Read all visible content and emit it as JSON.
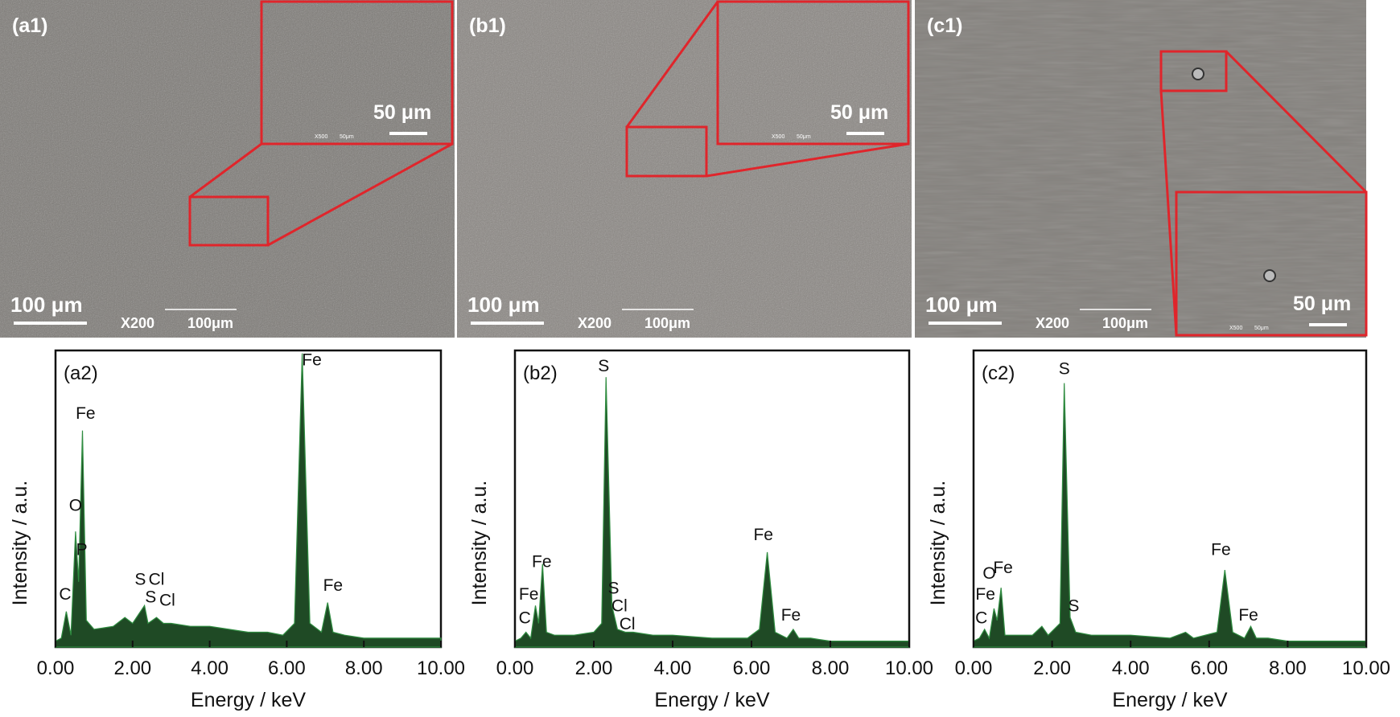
{
  "images": [
    {
      "label": "(a1)",
      "scale_bar": "100 μm",
      "mag": "X200",
      "mag_bar": "100μm",
      "inset_scale_bar": "50 μm",
      "inset_mag": "X500",
      "inset_mag_bar": "50μm"
    },
    {
      "label": "(b1)",
      "scale_bar": "100 μm",
      "mag": "X200",
      "mag_bar": "100μm",
      "inset_scale_bar": "50 μm",
      "inset_mag": "X500",
      "inset_mag_bar": "50μm"
    },
    {
      "label": "(c1)",
      "scale_bar": "100 μm",
      "mag": "X200",
      "mag_bar": "100μm",
      "inset_scale_bar": "50 μm",
      "inset_mag": "X500",
      "inset_mag_bar": "50μm"
    }
  ],
  "chart_data": [
    {
      "type": "area",
      "panel_label": "(a2)",
      "x_label": "Energy / keV",
      "y_label": "Intensity / a.u.",
      "color": "#1f4a25",
      "edge_color": "#2f8c40",
      "xlim": [
        0,
        10
      ],
      "ylim": [
        0,
        100
      ],
      "xticks": [
        {
          "value": 0,
          "label": "0.00"
        },
        {
          "value": 2,
          "label": "2.00"
        },
        {
          "value": 4,
          "label": "4.00"
        },
        {
          "value": 6,
          "label": "6.00"
        },
        {
          "value": 8,
          "label": "8.00"
        },
        {
          "value": 10,
          "label": "10.00"
        }
      ],
      "x": [
        0.0,
        0.15,
        0.28,
        0.4,
        0.52,
        0.6,
        0.7,
        0.8,
        1.0,
        1.5,
        1.8,
        2.0,
        2.31,
        2.4,
        2.62,
        2.8,
        3.0,
        3.5,
        4.0,
        4.5,
        5.0,
        5.5,
        5.9,
        6.2,
        6.4,
        6.6,
        6.9,
        7.06,
        7.2,
        7.5,
        8.0,
        9.0,
        10.0
      ],
      "values": [
        2,
        3,
        12,
        4,
        39,
        22,
        73,
        9,
        6,
        7,
        10,
        8,
        14,
        8,
        10,
        8,
        8,
        7,
        7,
        6,
        5,
        5,
        4,
        8,
        99,
        8,
        5,
        15,
        5,
        4,
        3,
        3,
        3
      ],
      "annotations": [
        {
          "text": "C",
          "x": 0.25,
          "y": 16
        },
        {
          "text": "O",
          "x": 0.52,
          "y": 46
        },
        {
          "text": "P",
          "x": 0.68,
          "y": 31
        },
        {
          "text": "Fe",
          "x": 0.78,
          "y": 77
        },
        {
          "text": "S",
          "x": 2.2,
          "y": 21
        },
        {
          "text": "Cl",
          "x": 2.62,
          "y": 21
        },
        {
          "text": "S",
          "x": 2.47,
          "y": 15
        },
        {
          "text": "Cl",
          "x": 2.9,
          "y": 14
        },
        {
          "text": "Fe",
          "x": 6.65,
          "y": 95
        },
        {
          "text": "Fe",
          "x": 7.2,
          "y": 19
        }
      ]
    },
    {
      "type": "area",
      "panel_label": "(b2)",
      "x_label": "Energy / keV",
      "y_label": "Intensity / a.u.",
      "color": "#1f4a25",
      "edge_color": "#2f8c40",
      "xlim": [
        0,
        10
      ],
      "ylim": [
        0,
        100
      ],
      "xticks": [
        {
          "value": 0,
          "label": "0.00"
        },
        {
          "value": 2,
          "label": "2.00"
        },
        {
          "value": 4,
          "label": "4.00"
        },
        {
          "value": 6,
          "label": "6.00"
        },
        {
          "value": 8,
          "label": "8.00"
        },
        {
          "value": 10,
          "label": "10.00"
        }
      ],
      "x": [
        0.0,
        0.15,
        0.28,
        0.4,
        0.52,
        0.6,
        0.7,
        0.8,
        1.0,
        1.5,
        2.0,
        2.2,
        2.31,
        2.46,
        2.6,
        2.8,
        3.0,
        3.5,
        4.0,
        5.0,
        5.9,
        6.2,
        6.4,
        6.6,
        6.9,
        7.06,
        7.2,
        7.5,
        8.0,
        9.0,
        10.0
      ],
      "values": [
        2,
        3,
        5,
        3,
        14,
        8,
        28,
        5,
        4,
        4,
        5,
        8,
        91,
        14,
        6,
        5,
        5,
        4,
        4,
        3,
        3,
        6,
        32,
        5,
        3,
        6,
        3,
        3,
        2,
        2,
        2
      ],
      "annotations": [
        {
          "text": "Fe",
          "x": 0.35,
          "y": 16
        },
        {
          "text": "C",
          "x": 0.25,
          "y": 8
        },
        {
          "text": "Fe",
          "x": 0.68,
          "y": 27
        },
        {
          "text": "S",
          "x": 2.25,
          "y": 93
        },
        {
          "text": "S",
          "x": 2.5,
          "y": 18
        },
        {
          "text": "Cl",
          "x": 2.65,
          "y": 12
        },
        {
          "text": "Cl",
          "x": 2.85,
          "y": 6
        },
        {
          "text": "Fe",
          "x": 6.3,
          "y": 36
        },
        {
          "text": "Fe",
          "x": 7.0,
          "y": 9
        }
      ]
    },
    {
      "type": "area",
      "panel_label": "(c2)",
      "x_label": "Energy / keV",
      "y_label": "Intensity / a.u.",
      "color": "#1f4a25",
      "edge_color": "#2f8c40",
      "xlim": [
        0,
        10
      ],
      "ylim": [
        0,
        100
      ],
      "xticks": [
        {
          "value": 0,
          "label": "0.00"
        },
        {
          "value": 2,
          "label": "2.00"
        },
        {
          "value": 4,
          "label": "4.00"
        },
        {
          "value": 6,
          "label": "6.00"
        },
        {
          "value": 8,
          "label": "8.00"
        },
        {
          "value": 10,
          "label": "10.00"
        }
      ],
      "x": [
        0.0,
        0.15,
        0.28,
        0.4,
        0.52,
        0.6,
        0.7,
        0.8,
        1.0,
        1.5,
        1.74,
        1.9,
        2.2,
        2.31,
        2.46,
        2.6,
        3.0,
        4.0,
        5.0,
        5.4,
        5.6,
        6.2,
        6.4,
        6.6,
        6.9,
        7.06,
        7.2,
        7.5,
        8.0,
        9.0,
        10.0
      ],
      "values": [
        2,
        3,
        6,
        3,
        13,
        9,
        20,
        4,
        4,
        4,
        7,
        4,
        8,
        89,
        10,
        5,
        4,
        4,
        3,
        5,
        3,
        5,
        26,
        5,
        3,
        7,
        3,
        3,
        2,
        2,
        2
      ],
      "annotations": [
        {
          "text": "C",
          "x": 0.2,
          "y": 8
        },
        {
          "text": "Fe",
          "x": 0.3,
          "y": 16
        },
        {
          "text": "O",
          "x": 0.4,
          "y": 23
        },
        {
          "text": "Fe",
          "x": 0.75,
          "y": 25
        },
        {
          "text": "S",
          "x": 2.31,
          "y": 92
        },
        {
          "text": "S",
          "x": 2.55,
          "y": 12
        },
        {
          "text": "Fe",
          "x": 6.3,
          "y": 31
        },
        {
          "text": "Fe",
          "x": 7.0,
          "y": 9
        }
      ]
    }
  ]
}
